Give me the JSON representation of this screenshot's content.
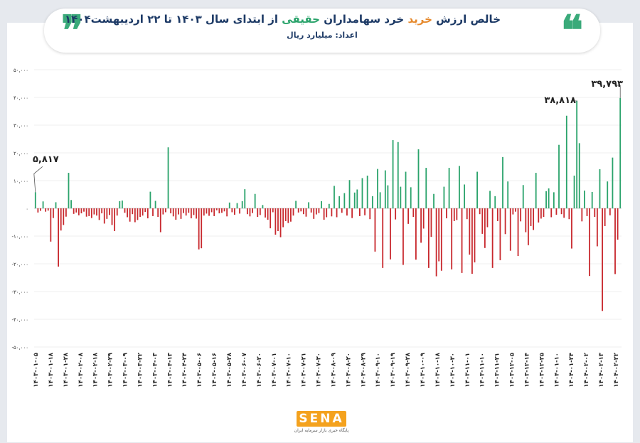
{
  "header": {
    "title_parts": [
      "خالص ارزش ",
      "خرید",
      " خرد سهامداران ",
      "حقیقی",
      " از ابتدای سال ۱۴۰۳ تا ۲۲ اردیبهشت۱۴۰۴"
    ],
    "subtitle": "اعداد: میلیارد ریال",
    "quote_icon": "quote-icon"
  },
  "logo": {
    "text": "SENA",
    "sub": "پایگاه خبری بازار سرمایه ایران"
  },
  "colors": {
    "positive": "#2aa36b",
    "negative": "#c8282d",
    "title": "#1d3a66",
    "accent": "#e68a2e",
    "quote": "#3aaa7a"
  },
  "chart_data": {
    "type": "bar",
    "ylim": [
      -50000,
      50000
    ],
    "yticks": [
      50000,
      40000,
      30000,
      20000,
      10000,
      0,
      -10000,
      -20000,
      -30000,
      -40000,
      -50000
    ],
    "ytick_labels": [
      "۵۰,۰۰۰",
      "۴۰,۰۰۰",
      "۳۰,۰۰۰",
      "۲۰,۰۰۰",
      "۱۰,۰۰۰",
      "۰",
      "-۱۰,۰۰۰",
      "-۲۰,۰۰۰",
      "-۳۰,۰۰۰",
      "-۴۰,۰۰۰",
      "-۵۰,۰۰۰"
    ],
    "xtick_labels": [
      "۱۴۰۳-۰۱-۰۵",
      "۱۴۰۳-۰۱-۱۸",
      "۱۴۰۳-۰۱-۲۸",
      "۱۴۰۳-۰۲-۰۸",
      "۱۴۰۳-۰۲-۱۸",
      "۱۴۰۳-۰۲-۲۹",
      "۱۴۰۳-۰۳-۰۹",
      "۱۴۰۳-۰۳-۲۲",
      "۱۴۰۳-۰۴-۰۳",
      "۱۴۰۳-۰۴-۱۳",
      "۱۴۰۳-۰۴-۲۴",
      "۱۴۰۳-۰۵-۰۶",
      "۱۴۰۳-۰۵-۱۶",
      "۱۴۰۳-۰۵-۲۸",
      "۱۴۰۳-۰۶-۰۷",
      "۱۴۰۳-۰۶-۲۰",
      "۱۴۰۳-۰۷-۰۱",
      "۱۴۰۳-۰۷-۱۰",
      "۱۴۰۳-۰۷-۲۱",
      "۱۴۰۳-۰۷-۳۰",
      "۱۴۰۳-۰۸-۰۹",
      "۱۴۰۳-۰۸-۲۰",
      "۱۴۰۳-۰۸-۲۹",
      "۱۴۰۳-۰۹-۱۰",
      "۱۴۰۳-۰۹-۱۹",
      "۱۴۰۳-۰۹-۲۸",
      "۱۴۰۳-۱۰-۰۹",
      "۱۴۰۳-۱۰-۱۸",
      "۱۴۰۳-۱۰-۳۰",
      "۱۴۰۳-۱۱-۰۱",
      "۱۴۰۳-۱۱-۱۰",
      "۱۴۰۳-۱۱-۲۱",
      "۱۴۰۳-۱۲-۰۵",
      "۱۴۰۳-۱۲-۱۴",
      "۱۴۰۳-۱۲-۲۵",
      "۱۴۰۴-۰۱-۱۰",
      "۱۴۰۴-۰۱-۲۴",
      "۱۴۰۴-۰۲-۰۲",
      "۱۴۰۴-۰۲-۱۳",
      "۱۴۰۴-۰۲-۲۲"
    ],
    "values": [
      5817,
      -1500,
      -900,
      2500,
      -1200,
      -800,
      -12000,
      -3500,
      2200,
      -21000,
      -8000,
      -6000,
      -3000,
      12800,
      3000,
      -2000,
      -1500,
      -2500,
      -1800,
      -1200,
      -3000,
      -2800,
      -3500,
      -2200,
      -2600,
      -4200,
      -1800,
      -5500,
      -3800,
      -2400,
      -6000,
      -8200,
      -2600,
      2600,
      2800,
      -1600,
      -3200,
      -4800,
      -2100,
      -5000,
      -4200,
      -3100,
      -2600,
      -1300,
      -3600,
      6000,
      -2800,
      2700,
      -3100,
      -8600,
      -2200,
      -1400,
      22000,
      -1800,
      -2900,
      -4100,
      -2200,
      -3800,
      -1700,
      -2600,
      -1600,
      -3600,
      -2400,
      -3700,
      -14800,
      -14400,
      -2600,
      -1900,
      -2700,
      -1400,
      -2800,
      -700,
      -1800,
      -1600,
      -1100,
      -2900,
      2100,
      -1400,
      -2300,
      1900,
      -1900,
      2600,
      6900,
      -2100,
      -2900,
      -1700,
      5200,
      -3100,
      -2400,
      1200,
      -3300,
      -4100,
      -7200,
      -1400,
      -9500,
      -8200,
      -10400,
      -6800,
      -4600,
      -5300,
      -4800,
      -2600,
      2700,
      -1500,
      -1100,
      -2100,
      -3000,
      2200,
      -1500,
      -3800,
      -2200,
      -1700,
      2600,
      -4100,
      -3200,
      1600,
      -2900,
      8100,
      -3200,
      4400,
      -1600,
      5500,
      -2600,
      10200,
      -3500,
      5700,
      6800,
      -2800,
      10900,
      -2500,
      11800,
      -3900,
      4400,
      -15600,
      14200,
      5800,
      -21500,
      13700,
      8300,
      -18400,
      24600,
      -4000,
      23900,
      7800,
      -20400,
      13200,
      -5600,
      7600,
      -3100,
      -18500,
      21300,
      -12400,
      -7300,
      14600,
      -21500,
      -10300,
      5200,
      -24500,
      -19100,
      -22500,
      7800,
      -3600,
      14600,
      -22000,
      -4600,
      -4200,
      15300,
      -23300,
      8600,
      -3900,
      -16700,
      -23600,
      -19500,
      13200,
      -2100,
      -9200,
      -14300,
      -6800,
      6300,
      -21500,
      4400,
      -4600,
      -18700,
      18500,
      -9300,
      9700,
      -15300,
      -2200,
      -1200,
      -17200,
      -4700,
      8400,
      -8600,
      -13300,
      -6400,
      -7800,
      12800,
      -5100,
      -3700,
      -3100,
      6200,
      7200,
      -3200,
      5800,
      -2300,
      22900,
      -2100,
      -3400,
      33400,
      -3900,
      -14500,
      11800,
      38818,
      23500,
      -4700,
      6400,
      -2800,
      -24400,
      5900,
      -3100,
      -13700,
      14100,
      -37000,
      -6400,
      9700,
      -2500,
      18300,
      -23700,
      -11300,
      39793
    ]
  },
  "annotations": {
    "first": {
      "label": "۵,۸۱۷",
      "value": 5817
    },
    "peak1": {
      "label": "۳۸,۸۱۸",
      "value": 38818
    },
    "peak2": {
      "label": "۳۹,۷۹۳",
      "value": 39793
    }
  }
}
